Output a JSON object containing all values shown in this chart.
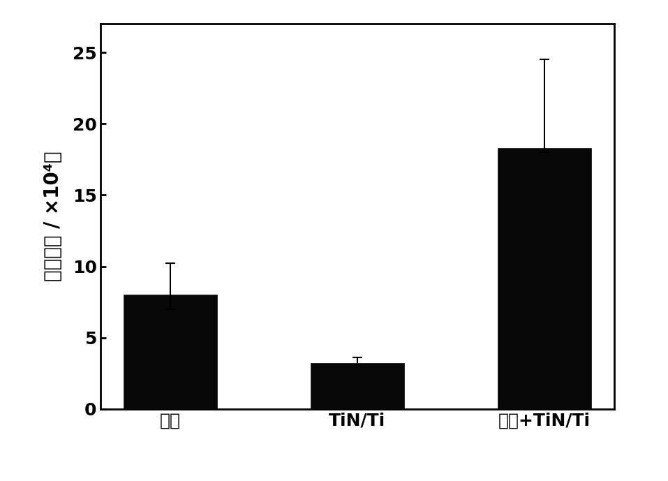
{
  "categories": [
    "基材",
    "TiN/Ti",
    "强化+TiN/Ti"
  ],
  "values": [
    8.0,
    3.2,
    18.3
  ],
  "errors_upper": [
    2.2,
    0.4,
    6.2
  ],
  "errors_lower": [
    1.0,
    0.2,
    0.3
  ],
  "bar_color": "#080808",
  "bar_width": 0.5,
  "ylabel": "疲劳寿命 / ×10⁴次",
  "ylim": [
    0,
    27
  ],
  "yticks": [
    0,
    5,
    10,
    15,
    20,
    25
  ],
  "background_color": "#ffffff",
  "ylabel_fontsize": 20,
  "tick_fontsize": 18,
  "xtick_fontsize": 18
}
